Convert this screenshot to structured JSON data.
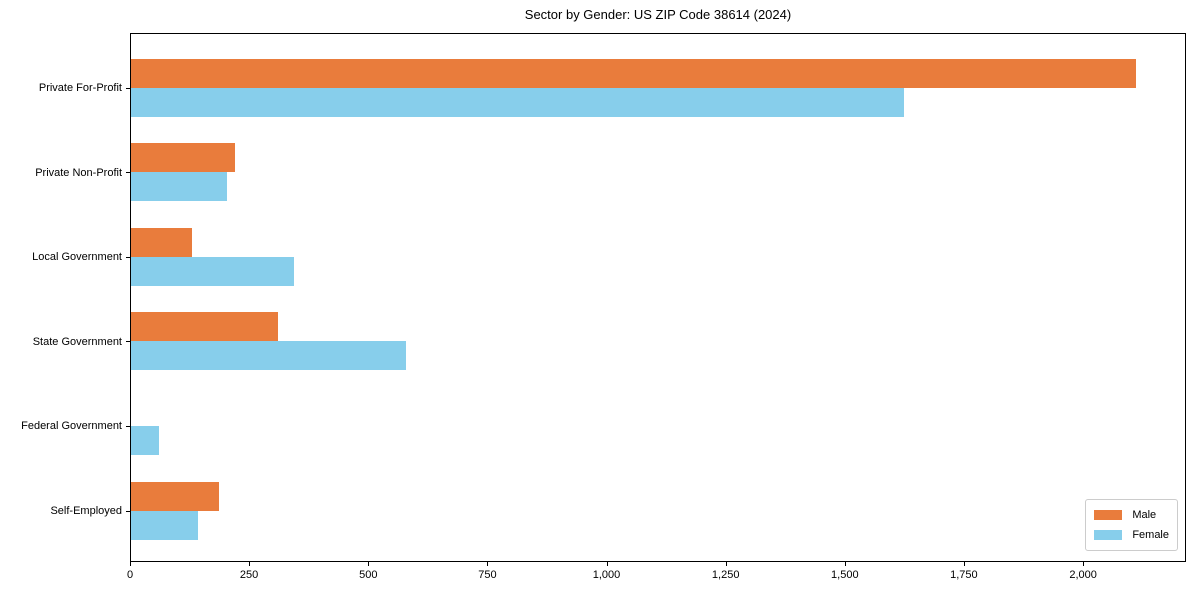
{
  "figure": {
    "title": "Sector by Gender: US ZIP Code 38614 (2024)"
  },
  "chart_data": {
    "type": "bar",
    "orientation": "horizontal",
    "title": "Sector by Gender: US ZIP Code 38614 (2024)",
    "categories": [
      "Private For-Profit",
      "Private Non-Profit",
      "Local Government",
      "State Government",
      "Federal Government",
      "Self-Employed"
    ],
    "series": [
      {
        "name": "Male",
        "color": "#e97c3c",
        "values": [
          2110,
          220,
          130,
          311,
          0,
          187
        ]
      },
      {
        "name": "Female",
        "color": "#87ceeb",
        "values": [
          1624,
          203,
          344,
          580,
          61,
          143
        ]
      }
    ],
    "xlabel": "",
    "ylabel": "",
    "xlim": [
      0,
      2216
    ],
    "xticks": [
      0,
      250,
      500,
      750,
      1000,
      1250,
      1500,
      1750,
      2000
    ],
    "xtick_labels": [
      "0",
      "250",
      "500",
      "750",
      "1,000",
      "1,250",
      "1,500",
      "1,750",
      "2,000"
    ],
    "grid": false,
    "legend": {
      "position": "lower right"
    }
  }
}
